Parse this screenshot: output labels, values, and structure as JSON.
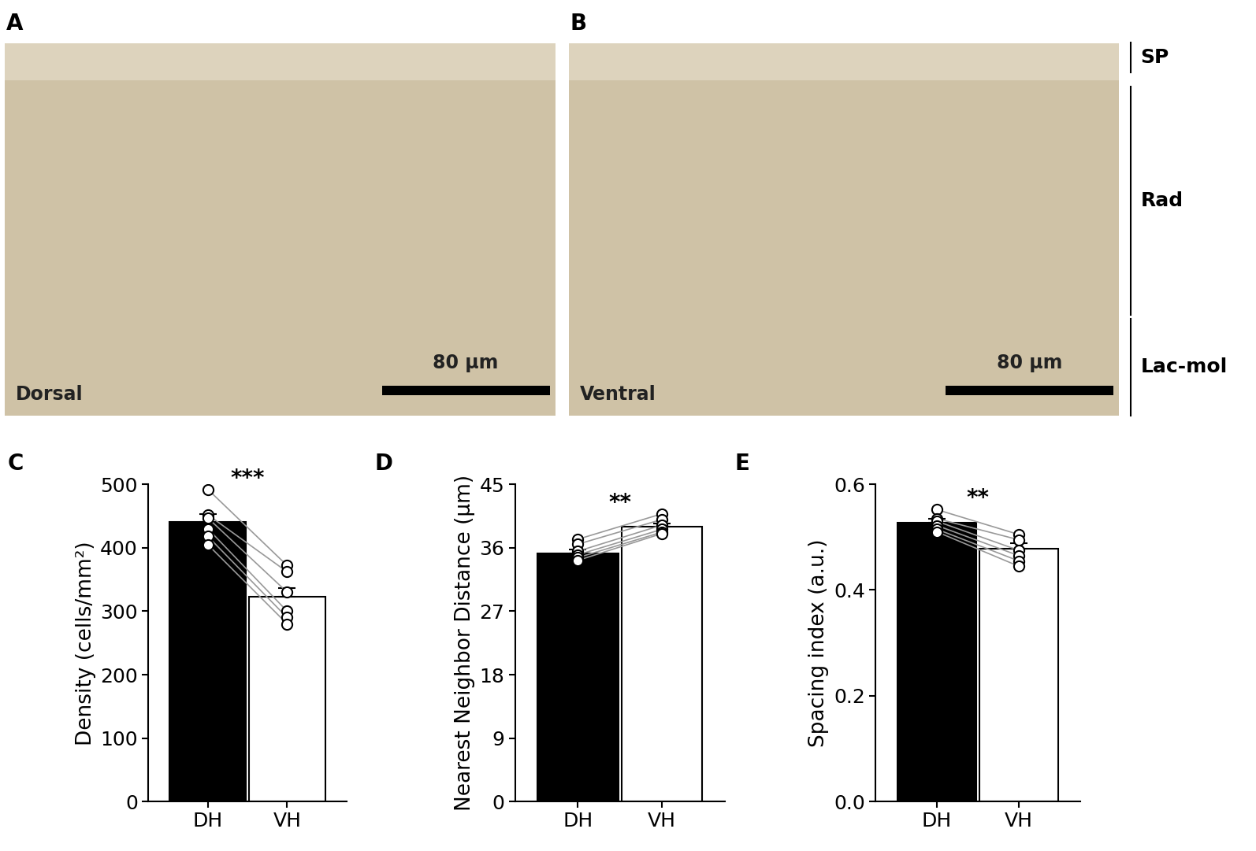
{
  "images": [
    {
      "panel": "A",
      "label": "Dorsal",
      "scale_bar": "80 µm"
    },
    {
      "panel": "B",
      "label": "Ventral",
      "scale_bar": "80 µm"
    }
  ],
  "layers": [
    "SP",
    "Rad",
    "Lac-mol"
  ],
  "chart_data": [
    {
      "type": "bar",
      "panel": "C",
      "categories": [
        "DH",
        "VH"
      ],
      "values": [
        440,
        323
      ],
      "errors": [
        13,
        14
      ],
      "colors": [
        "#000000",
        "#ffffff"
      ],
      "points": [
        [
          492,
          372
        ],
        [
          452,
          362
        ],
        [
          447,
          330
        ],
        [
          430,
          300
        ],
        [
          418,
          290
        ],
        [
          405,
          280
        ]
      ],
      "y_label": "Density (cells/mm²)",
      "annotation": "***",
      "ylim": [
        0,
        500
      ],
      "yticks": [
        0,
        100,
        200,
        300,
        400,
        500
      ]
    },
    {
      "type": "bar",
      "panel": "D",
      "categories": [
        "DH",
        "VH"
      ],
      "values": [
        35.2,
        39.0
      ],
      "errors": [
        0.5,
        0.4
      ],
      "colors": [
        "#000000",
        "#ffffff"
      ],
      "points": [
        [
          37.2,
          40.8
        ],
        [
          36.5,
          40.0
        ],
        [
          35.5,
          39.2
        ],
        [
          35.0,
          38.6
        ],
        [
          34.6,
          38.2
        ],
        [
          34.2,
          38.0
        ]
      ],
      "y_label": "Nearest Neighbor Distance (µm)",
      "annotation": "**",
      "ylim": [
        0,
        45
      ],
      "yticks": [
        0,
        9,
        18,
        27,
        36,
        45
      ]
    },
    {
      "type": "bar",
      "panel": "E",
      "categories": [
        "DH",
        "VH"
      ],
      "values": [
        0.527,
        0.478
      ],
      "errors": [
        0.007,
        0.01
      ],
      "colors": [
        "#000000",
        "#ffffff"
      ],
      "points": [
        [
          0.552,
          0.505
        ],
        [
          0.535,
          0.495
        ],
        [
          0.53,
          0.475
        ],
        [
          0.522,
          0.465
        ],
        [
          0.515,
          0.455
        ],
        [
          0.51,
          0.445
        ]
      ],
      "y_label": "Spacing index (a.u.)",
      "annotation": "**",
      "ylim": [
        0,
        0.6
      ],
      "yticks": [
        {
          "value": 0,
          "label": "0.0"
        },
        0.2,
        0.4,
        0.6
      ]
    }
  ]
}
